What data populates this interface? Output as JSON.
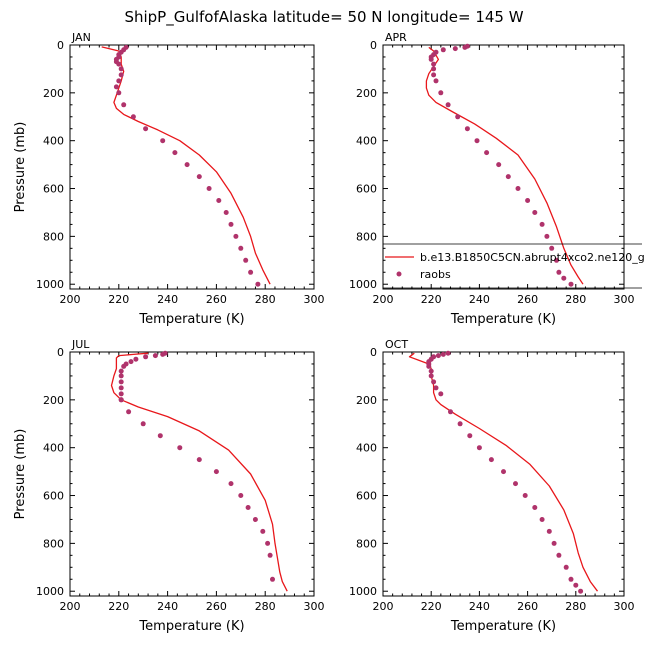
{
  "figure": {
    "title": "ShipP_GulfofAlaska  latitude= 50 N longitude= 145 W"
  },
  "legend": {
    "model_label": "b.e13.B1850C5CN.abrupt4xco2.ne120_g",
    "obs_label": "raobs",
    "model_color": "#e8171b",
    "obs_color": "#b0336b"
  },
  "chart_data": [
    {
      "type": "line",
      "title": "JAN",
      "xlabel": "Temperature (K)",
      "ylabel": "Pressure (mb)",
      "xlim": [
        200,
        300
      ],
      "ylim": [
        1020,
        0
      ],
      "xticks": [
        200,
        220,
        240,
        260,
        280,
        300
      ],
      "yticks": [
        0,
        200,
        400,
        600,
        800,
        1000
      ],
      "series": [
        {
          "name": "b.e13.B1850C5CN.abrupt4xco2.ne120_g",
          "x": [
            213,
            216,
            220,
            221,
            221,
            222,
            221,
            220,
            219,
            218,
            219,
            222,
            228,
            236,
            245,
            253,
            260,
            266,
            271,
            274,
            276,
            279,
            282
          ],
          "y": [
            8,
            15,
            25,
            50,
            80,
            110,
            150,
            180,
            210,
            240,
            265,
            290,
            320,
            355,
            400,
            460,
            530,
            620,
            720,
            800,
            870,
            940,
            1000
          ]
        },
        {
          "name": "raobs",
          "x": [
            223,
            222,
            221,
            220,
            220,
            219,
            219,
            220,
            221,
            221,
            220,
            219,
            220,
            222,
            226,
            231,
            238,
            243,
            248,
            253,
            257,
            261,
            264,
            266,
            268,
            270,
            272,
            274,
            277
          ],
          "y": [
            10,
            20,
            30,
            40,
            50,
            60,
            70,
            80,
            100,
            125,
            150,
            175,
            200,
            250,
            300,
            350,
            400,
            450,
            500,
            550,
            600,
            650,
            700,
            750,
            800,
            850,
            900,
            950,
            1000
          ]
        }
      ]
    },
    {
      "type": "line",
      "title": "APR",
      "xlabel": "Temperature (K)",
      "ylabel": "",
      "xlim": [
        200,
        300
      ],
      "ylim": [
        1020,
        0
      ],
      "xticks": [
        200,
        220,
        240,
        260,
        280,
        300
      ],
      "yticks": [
        0,
        200,
        400,
        600,
        800,
        1000
      ],
      "series": [
        {
          "name": "b.e13.B1850C5CN.abrupt4xco2.ne120_g",
          "x": [
            219,
            221,
            223,
            221,
            219,
            218,
            218,
            219,
            222,
            229,
            238,
            247,
            256,
            263,
            268,
            272,
            275,
            278,
            281,
            283
          ],
          "y": [
            10,
            25,
            60,
            90,
            120,
            150,
            180,
            210,
            240,
            280,
            330,
            390,
            460,
            560,
            660,
            760,
            850,
            920,
            970,
            1000
          ]
        },
        {
          "name": "raobs",
          "x": [
            235,
            234,
            230,
            225,
            222,
            221,
            220,
            220,
            221,
            221,
            221,
            222,
            224,
            227,
            231,
            235,
            239,
            243,
            248,
            252,
            256,
            260,
            263,
            266,
            268,
            270,
            272,
            273,
            275,
            278
          ],
          "y": [
            5,
            10,
            15,
            20,
            30,
            40,
            50,
            60,
            80,
            100,
            125,
            150,
            200,
            250,
            300,
            350,
            400,
            450,
            500,
            550,
            600,
            650,
            700,
            750,
            800,
            850,
            900,
            950,
            975,
            1000
          ]
        }
      ]
    },
    {
      "type": "line",
      "title": "JUL",
      "xlabel": "Temperature (K)",
      "ylabel": "Pressure (mb)",
      "xlim": [
        200,
        300
      ],
      "ylim": [
        1020,
        0
      ],
      "xticks": [
        200,
        220,
        240,
        260,
        280,
        300
      ],
      "yticks": [
        0,
        200,
        400,
        600,
        800,
        1000
      ],
      "series": [
        {
          "name": "b.e13.B1850C5CN.abrupt4xco2.ne120_g",
          "x": [
            232,
            226,
            220,
            219,
            219,
            219,
            218,
            217,
            218,
            221,
            228,
            240,
            253,
            265,
            274,
            280,
            283,
            284,
            285,
            286,
            287,
            289
          ],
          "y": [
            5,
            10,
            15,
            25,
            40,
            70,
            100,
            140,
            170,
            200,
            230,
            270,
            330,
            410,
            510,
            620,
            720,
            800,
            860,
            920,
            960,
            1000
          ]
        },
        {
          "name": "raobs",
          "x": [
            239,
            238,
            235,
            231,
            227,
            225,
            223,
            222,
            221,
            221,
            221,
            221,
            221,
            221,
            221,
            224,
            230,
            237,
            245,
            253,
            260,
            266,
            270,
            273,
            276,
            279,
            281,
            282,
            283
          ],
          "y": [
            5,
            10,
            15,
            20,
            30,
            40,
            50,
            60,
            80,
            100,
            125,
            150,
            175,
            200,
            200,
            250,
            300,
            350,
            400,
            450,
            500,
            550,
            600,
            650,
            700,
            750,
            800,
            850,
            950
          ]
        }
      ]
    },
    {
      "type": "line",
      "title": "OCT",
      "xlabel": "Temperature (K)",
      "ylabel": "",
      "xlim": [
        200,
        300
      ],
      "ylim": [
        1020,
        0
      ],
      "xticks": [
        200,
        220,
        240,
        260,
        280,
        300
      ],
      "yticks": [
        0,
        200,
        400,
        600,
        800,
        1000
      ],
      "series": [
        {
          "name": "b.e13.B1850C5CN.abrupt4xco2.ne120_g",
          "x": [
            213,
            211,
            215,
            219,
            220,
            220,
            221,
            221,
            222,
            224,
            230,
            240,
            251,
            261,
            269,
            275,
            279,
            281,
            283,
            286,
            289
          ],
          "y": [
            5,
            20,
            35,
            50,
            70,
            100,
            140,
            170,
            200,
            220,
            260,
            320,
            390,
            470,
            560,
            660,
            760,
            840,
            900,
            960,
            1000
          ]
        },
        {
          "name": "raobs",
          "x": [
            227,
            225,
            223,
            221,
            220,
            219,
            219,
            219,
            220,
            220,
            221,
            222,
            224,
            228,
            232,
            236,
            240,
            245,
            250,
            255,
            259,
            263,
            266,
            269,
            271,
            273,
            276,
            278,
            280,
            282
          ],
          "y": [
            5,
            10,
            15,
            20,
            30,
            40,
            50,
            60,
            80,
            100,
            125,
            150,
            175,
            250,
            300,
            350,
            400,
            450,
            500,
            550,
            600,
            650,
            700,
            750,
            800,
            850,
            900,
            950,
            975,
            1000
          ]
        }
      ]
    }
  ]
}
